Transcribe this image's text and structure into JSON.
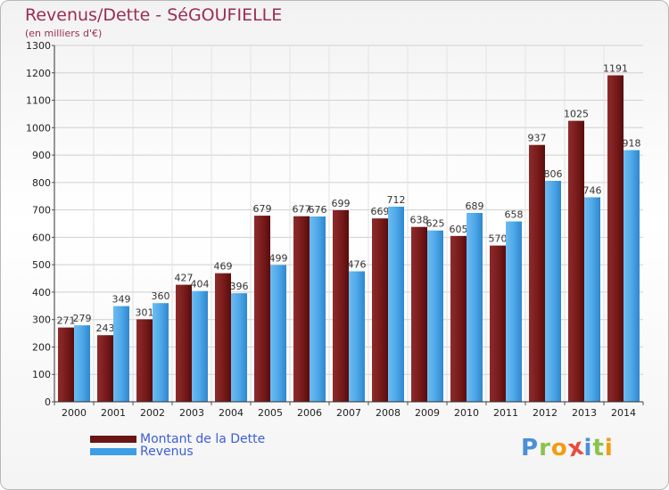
{
  "header": {
    "title": "Revenus/Dette - SéGOUFIELLE",
    "subtitle": "(en milliers d'€)"
  },
  "chart_data": {
    "type": "bar",
    "title": "Revenus/Dette - SéGOUFIELLE",
    "ylabel": "(en milliers d'€)",
    "xlabel": "",
    "ylim": [
      0,
      1300
    ],
    "yticks": [
      0,
      100,
      200,
      300,
      400,
      500,
      600,
      700,
      800,
      900,
      1000,
      1100,
      1200,
      1300
    ],
    "grid": true,
    "categories": [
      "2000",
      "2001",
      "2002",
      "2003",
      "2004",
      "2005",
      "2006",
      "2007",
      "2008",
      "2009",
      "2010",
      "2011",
      "2012",
      "2013",
      "2014"
    ],
    "series": [
      {
        "name": "Montant de la Dette",
        "color": "#7b1c1c",
        "values": [
          271,
          243,
          301,
          427,
          469,
          679,
          677,
          699,
          669,
          638,
          605,
          570,
          937,
          1025,
          1191
        ]
      },
      {
        "name": "Revenus",
        "color": "#4fa8e8",
        "values": [
          279,
          349,
          360,
          404,
          396,
          499,
          676,
          476,
          712,
          625,
          689,
          658,
          806,
          746,
          918
        ]
      }
    ]
  },
  "legend": {
    "items": [
      {
        "label": "Montant de la Dette",
        "color": "#6b1414"
      },
      {
        "label": "Revenus",
        "color": "#3d9ee6"
      }
    ]
  },
  "logo": {
    "text": "Proxiti",
    "letters": [
      "P",
      "r",
      "o",
      "x",
      "i",
      "t",
      "i"
    ],
    "colors": [
      "#4a90d9",
      "#8bc34a",
      "#f39c12",
      "#e74c3c",
      "#4a90d9",
      "#8bc34a",
      "#f39c12"
    ]
  }
}
